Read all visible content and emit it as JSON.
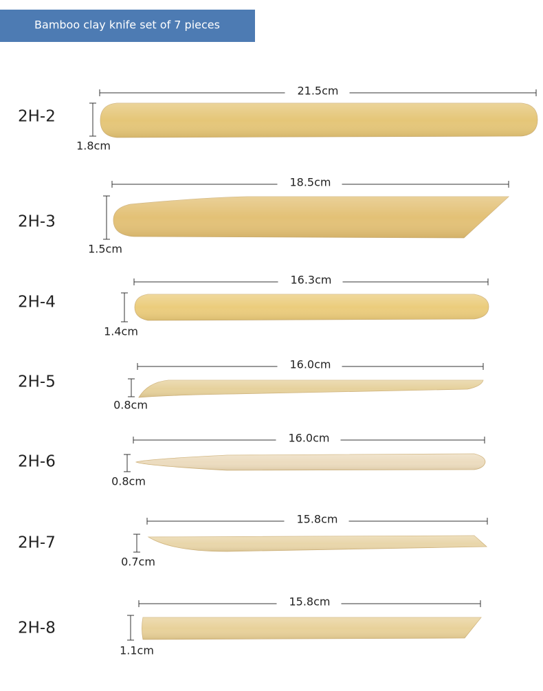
{
  "header": {
    "title": "Bamboo clay knife set of 7 pieces"
  },
  "items": [
    {
      "code": "2H-2",
      "length": "21.5cm",
      "width": "1.8cm"
    },
    {
      "code": "2H-3",
      "length": "18.5cm",
      "width": "1.5cm"
    },
    {
      "code": "2H-4",
      "length": "16.3cm",
      "width": "1.4cm"
    },
    {
      "code": "2H-5",
      "length": "16.0cm",
      "width": "0.8cm"
    },
    {
      "code": "2H-6",
      "length": "16.0cm",
      "width": "0.8cm"
    },
    {
      "code": "2H-7",
      "length": "15.8cm",
      "width": "0.7cm"
    },
    {
      "code": "2H-8",
      "length": "15.8cm",
      "width": "1.1cm"
    }
  ]
}
